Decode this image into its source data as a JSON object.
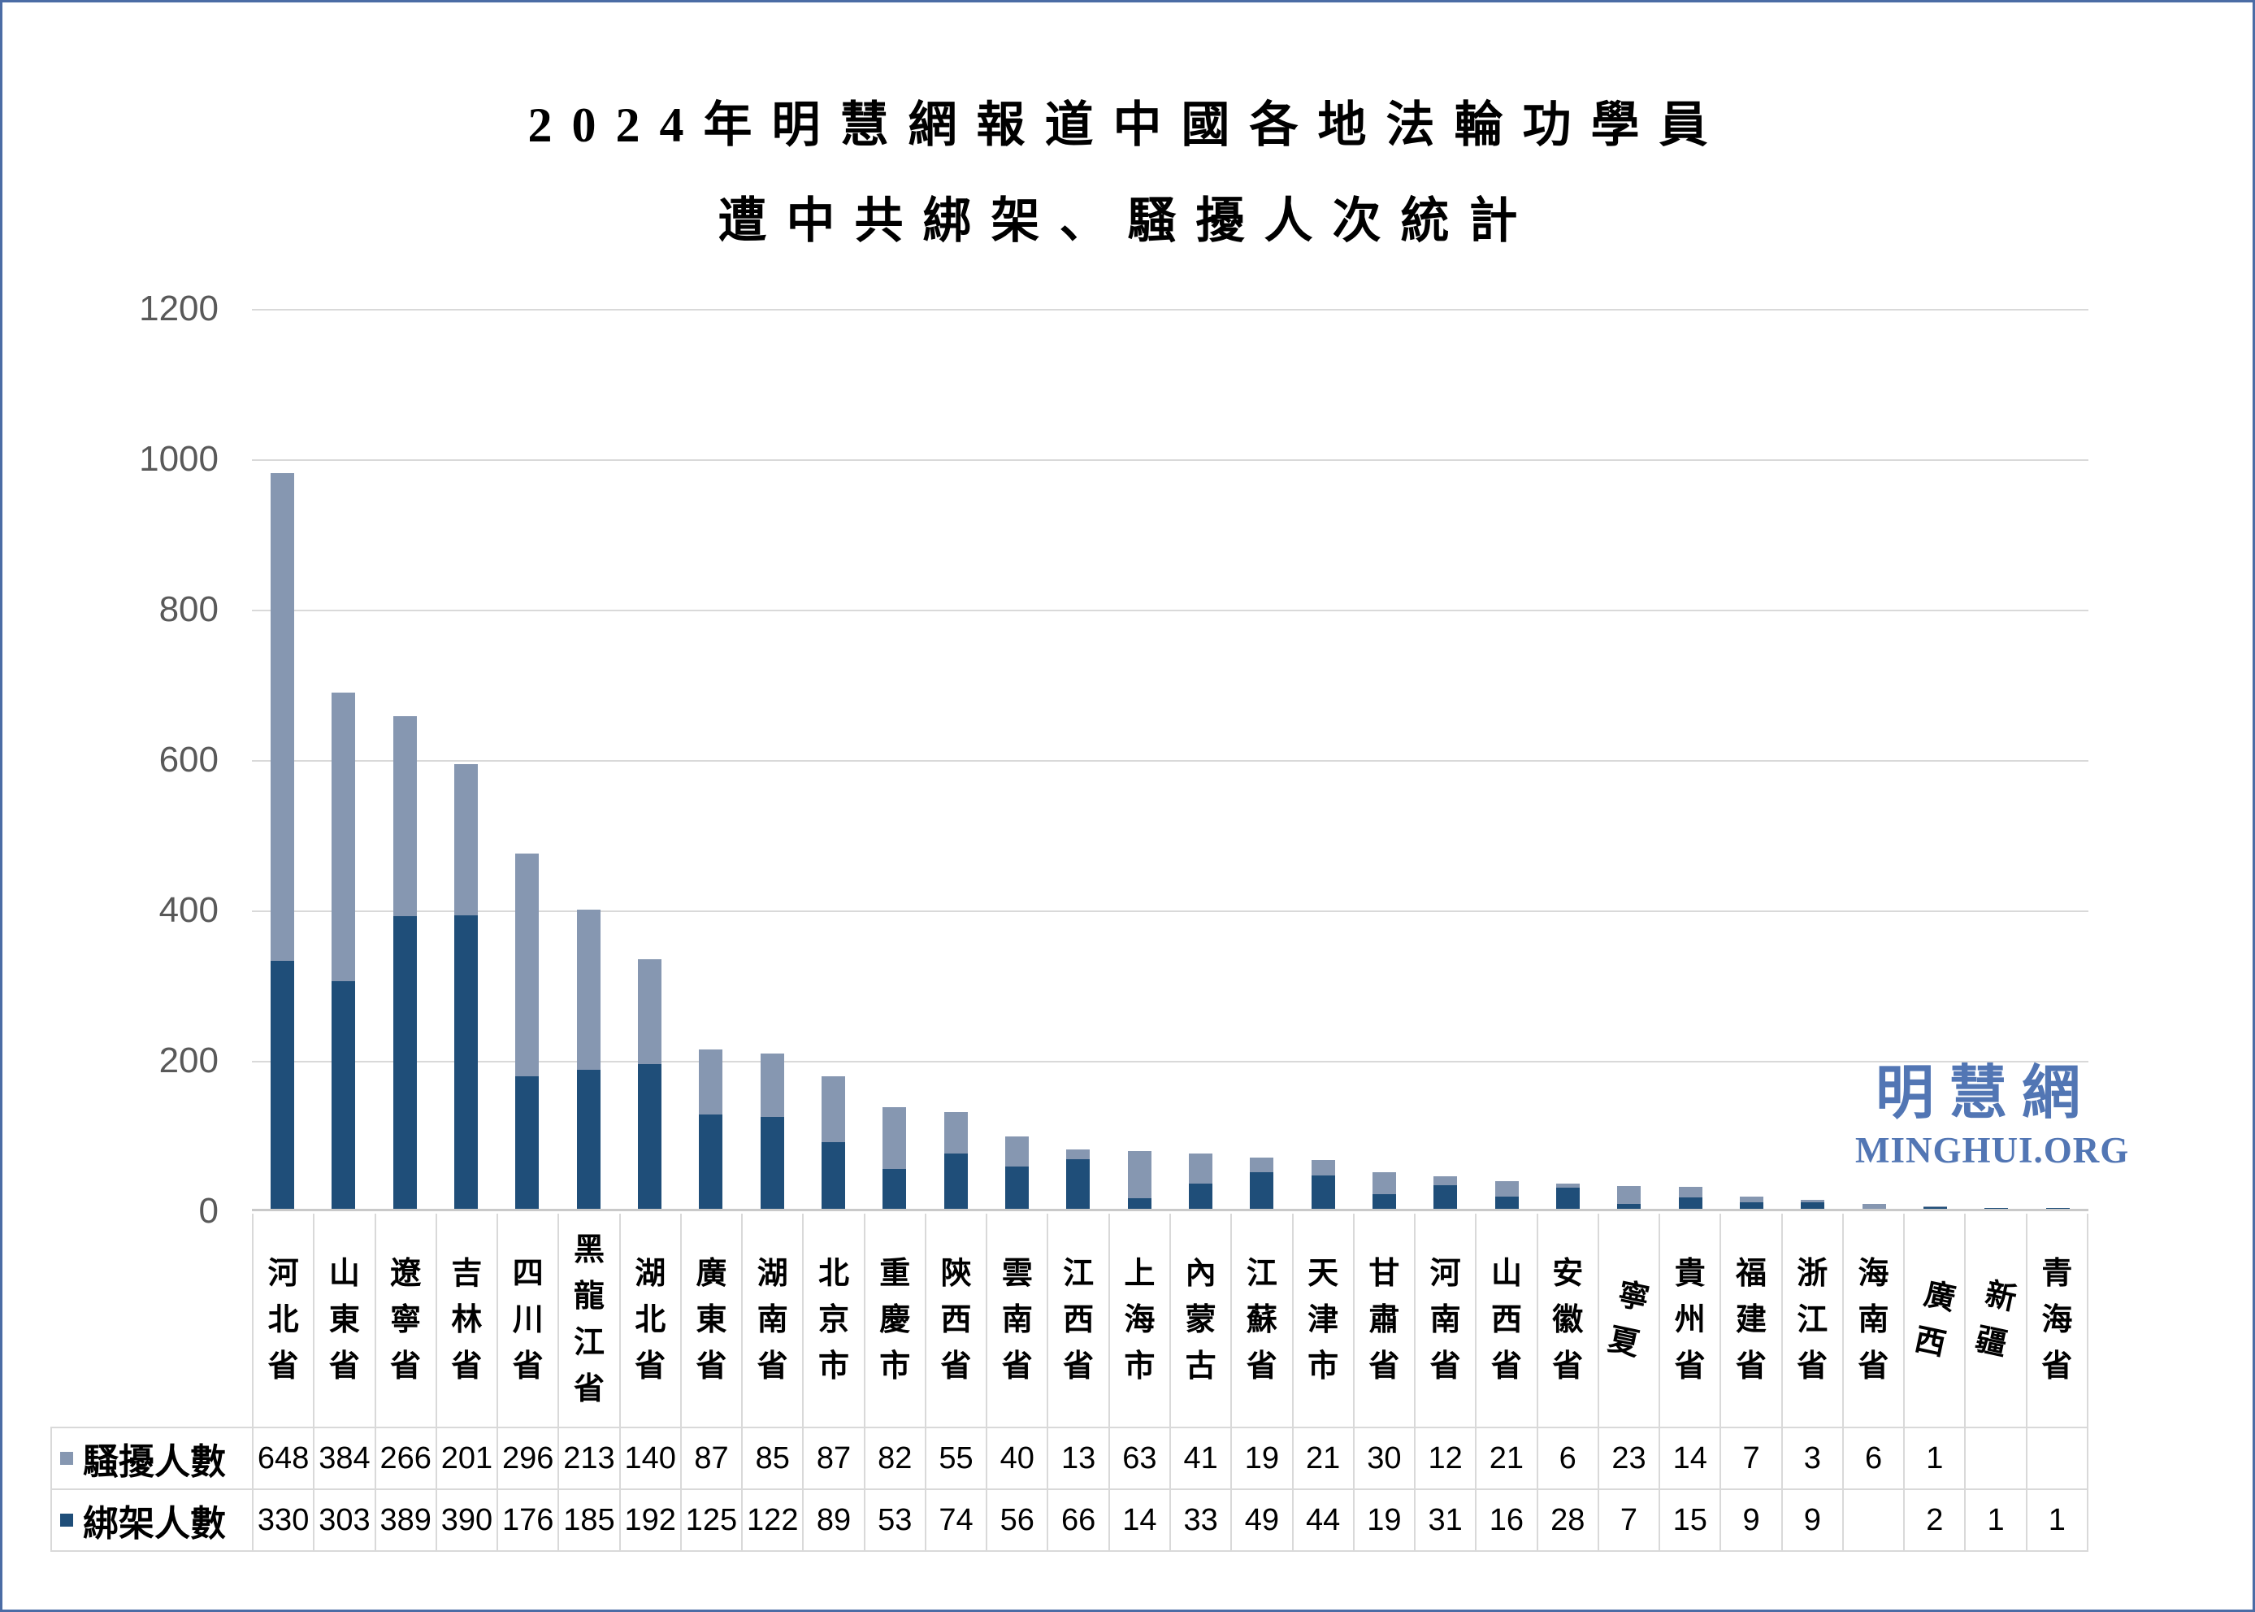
{
  "frame": {
    "border_color": "#4B6CA5",
    "background": "#FFFFFF"
  },
  "title": {
    "line1": "2024年明慧網報道中國各地法輪功學員",
    "line2": "遭中共綁架、騷擾人次統計"
  },
  "watermark": {
    "cjk": "明慧網",
    "latin": "MINGHUI.ORG",
    "color": "#5276B4"
  },
  "chart_data": {
    "type": "bar",
    "stacked": true,
    "title": "2024年明慧網報道中國各地法輪功學員遭中共綁架、騷擾人次統計",
    "categories": [
      "河北省",
      "山東省",
      "遼寧省",
      "吉林省",
      "四川省",
      "黑龍江省",
      "湖北省",
      "廣東省",
      "湖南省",
      "北京市",
      "重慶市",
      "陝西省",
      "雲南省",
      "江西省",
      "上海市",
      "內蒙古",
      "江蘇省",
      "天津市",
      "甘肅省",
      "河南省",
      "山西省",
      "安徽省",
      "寧夏",
      "貴州省",
      "福建省",
      "浙江省",
      "海南省",
      "廣西",
      "新疆",
      "青海省"
    ],
    "series": [
      {
        "name": "騷擾人數",
        "color": "#8697B1",
        "stack_position": "top",
        "values": [
          648,
          384,
          266,
          201,
          296,
          213,
          140,
          87,
          85,
          87,
          82,
          55,
          40,
          13,
          63,
          41,
          19,
          21,
          30,
          12,
          21,
          6,
          23,
          14,
          7,
          3,
          6,
          1,
          null,
          null
        ]
      },
      {
        "name": "綁架人數",
        "color": "#1F4E79",
        "stack_position": "bottom",
        "values": [
          330,
          303,
          389,
          390,
          176,
          185,
          192,
          125,
          122,
          89,
          53,
          74,
          56,
          66,
          14,
          33,
          49,
          44,
          19,
          31,
          16,
          28,
          7,
          15,
          9,
          9,
          null,
          2,
          1,
          1
        ]
      }
    ],
    "ylim": [
      0,
      1200
    ],
    "ytick_interval": 200,
    "yticks": [
      "1200",
      "1000",
      "800",
      "600",
      "400",
      "200",
      "0"
    ],
    "grid": true,
    "gridline_color": "#D9D9D9",
    "axis_label_color": "#595959",
    "legend_position": "data-table-left",
    "data_table_shown": true
  }
}
